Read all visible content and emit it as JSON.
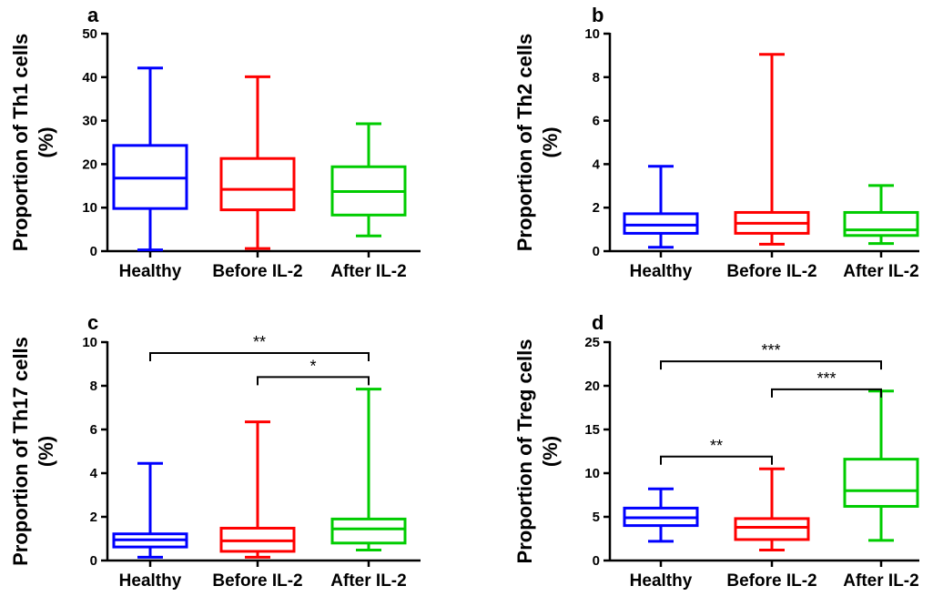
{
  "chart_data": [
    {
      "panel": "a",
      "type": "box",
      "ylabel_line1": "Proportion of Th1 cells",
      "ylabel_line2": "(%)",
      "categories": [
        "Healthy",
        "Before IL-2",
        "After IL-2"
      ],
      "ylim": [
        0,
        50
      ],
      "yticks": [
        0,
        10,
        20,
        30,
        40,
        50
      ],
      "tick_labels": [
        "0",
        "10",
        "20",
        "30",
        "40",
        "50"
      ],
      "boxes": [
        {
          "min": 0.3,
          "q1": 9.8,
          "median": 16.8,
          "q3": 24.3,
          "max": 42.1
        },
        {
          "min": 0.6,
          "q1": 9.5,
          "median": 14.2,
          "q3": 21.3,
          "max": 40.1
        },
        {
          "min": 3.5,
          "q1": 8.3,
          "median": 13.7,
          "q3": 19.4,
          "max": 29.3
        }
      ],
      "significance": []
    },
    {
      "panel": "b",
      "type": "box",
      "ylabel_line1": "Proportion of Th2 cells",
      "ylabel_line2": "(%)",
      "categories": [
        "Healthy",
        "Before IL-2",
        "After IL-2"
      ],
      "ylim": [
        0,
        10
      ],
      "yticks": [
        0,
        2,
        4,
        6,
        8,
        10
      ],
      "tick_labels": [
        "0",
        "2",
        "4",
        "6",
        "8",
        "10"
      ],
      "boxes": [
        {
          "min": 0.18,
          "q1": 0.82,
          "median": 1.2,
          "q3": 1.72,
          "max": 3.9
        },
        {
          "min": 0.32,
          "q1": 0.82,
          "median": 1.28,
          "q3": 1.78,
          "max": 9.05
        },
        {
          "min": 0.35,
          "q1": 0.72,
          "median": 0.98,
          "q3": 1.78,
          "max": 3.02
        }
      ],
      "significance": []
    },
    {
      "panel": "c",
      "type": "box",
      "ylabel_line1": "Proportion of Th17 cells",
      "ylabel_line2": "(%)",
      "categories": [
        "Healthy",
        "Before IL-2",
        "After IL-2"
      ],
      "ylim": [
        0,
        10
      ],
      "yticks": [
        0,
        2,
        4,
        6,
        8,
        10
      ],
      "tick_labels": [
        "0",
        "2",
        "4",
        "6",
        "8",
        "10"
      ],
      "boxes": [
        {
          "min": 0.15,
          "q1": 0.62,
          "median": 0.95,
          "q3": 1.22,
          "max": 4.45
        },
        {
          "min": 0.15,
          "q1": 0.42,
          "median": 0.9,
          "q3": 1.48,
          "max": 6.35
        },
        {
          "min": 0.48,
          "q1": 0.8,
          "median": 1.45,
          "q3": 1.9,
          "max": 7.85
        }
      ],
      "significance": [
        {
          "from": 0,
          "to": 2,
          "label": "**",
          "level": 9.5
        },
        {
          "from": 1,
          "to": 2,
          "label": "*",
          "level": 8.4
        }
      ]
    },
    {
      "panel": "d",
      "type": "box",
      "ylabel_line1": "Proportion of Treg cells",
      "ylabel_line2": "(%)",
      "categories": [
        "Healthy",
        "Before IL-2",
        "After IL-2"
      ],
      "ylim": [
        0,
        25
      ],
      "yticks": [
        0,
        5,
        10,
        15,
        20,
        25
      ],
      "tick_labels": [
        "0",
        "5",
        "10",
        "15",
        "20",
        "25"
      ],
      "boxes": [
        {
          "min": 2.2,
          "q1": 4.0,
          "median": 4.9,
          "q3": 6.0,
          "max": 8.2
        },
        {
          "min": 1.2,
          "q1": 2.4,
          "median": 3.8,
          "q3": 4.8,
          "max": 10.5
        },
        {
          "min": 2.3,
          "q1": 6.2,
          "median": 8.0,
          "q3": 11.6,
          "max": 19.4
        }
      ],
      "significance": [
        {
          "from": 0,
          "to": 2,
          "label": "***",
          "level": 22.8
        },
        {
          "from": 1,
          "to": 2,
          "label": "***",
          "level": 19.6
        },
        {
          "from": 0,
          "to": 1,
          "label": "**",
          "level": 11.9
        }
      ]
    }
  ],
  "colors": {
    "Healthy": "#0000ff",
    "Before IL-2": "#ff0000",
    "After IL-2": "#00cc00"
  }
}
